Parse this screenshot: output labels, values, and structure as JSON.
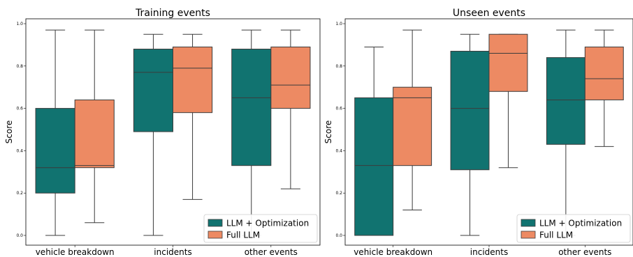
{
  "colors": {
    "opt": "#117370",
    "full": "#ed8a63",
    "line": "#3b3b3b"
  },
  "chart_data": [
    {
      "type": "box",
      "title": "Training events",
      "ylabel": "Score",
      "ylim": [
        0,
        1
      ],
      "yticks": [
        "0.0",
        "0.2",
        "0.4",
        "0.6",
        "0.8",
        "1.0"
      ],
      "categories": [
        "vehicle breakdown",
        "incidents",
        "other events"
      ],
      "legend": {
        "position": "bottom-right",
        "entries": [
          "LLM + Optimization",
          "Full LLM"
        ]
      },
      "series": [
        {
          "name": "LLM + Optimization",
          "boxes": [
            {
              "min": 0.0,
              "q1": 0.2,
              "median": 0.32,
              "q3": 0.6,
              "max": 0.97
            },
            {
              "min": 0.0,
              "q1": 0.49,
              "median": 0.77,
              "q3": 0.88,
              "max": 0.95
            },
            {
              "min": 0.0,
              "q1": 0.33,
              "median": 0.65,
              "q3": 0.88,
              "max": 0.97
            }
          ]
        },
        {
          "name": "Full LLM",
          "boxes": [
            {
              "min": 0.06,
              "q1": 0.32,
              "median": 0.33,
              "q3": 0.64,
              "max": 0.97
            },
            {
              "min": 0.17,
              "q1": 0.58,
              "median": 0.79,
              "q3": 0.89,
              "max": 0.95
            },
            {
              "min": 0.22,
              "q1": 0.6,
              "median": 0.71,
              "q3": 0.89,
              "max": 0.97
            }
          ]
        }
      ]
    },
    {
      "type": "box",
      "title": "Unseen events",
      "ylabel": "Score",
      "ylim": [
        0,
        1
      ],
      "yticks": [
        "0.0",
        "0.2",
        "0.4",
        "0.6",
        "0.8",
        "1.0"
      ],
      "categories": [
        "vehicle breakdown",
        "incidents",
        "other events"
      ],
      "legend": {
        "position": "bottom-right",
        "entries": [
          "LLM + Optimization",
          "Full LLM"
        ]
      },
      "series": [
        {
          "name": "LLM + Optimization",
          "boxes": [
            {
              "min": 0.0,
              "q1": 0.0,
              "median": 0.33,
              "q3": 0.65,
              "max": 0.89
            },
            {
              "min": 0.0,
              "q1": 0.31,
              "median": 0.6,
              "q3": 0.87,
              "max": 0.95
            },
            {
              "min": 0.0,
              "q1": 0.43,
              "median": 0.64,
              "q3": 0.84,
              "max": 0.97
            }
          ]
        },
        {
          "name": "Full LLM",
          "boxes": [
            {
              "min": 0.12,
              "q1": 0.33,
              "median": 0.65,
              "q3": 0.7,
              "max": 0.97
            },
            {
              "min": 0.32,
              "q1": 0.68,
              "median": 0.86,
              "q3": 0.95,
              "max": 0.95
            },
            {
              "min": 0.42,
              "q1": 0.64,
              "median": 0.74,
              "q3": 0.89,
              "max": 0.97
            }
          ]
        }
      ]
    }
  ]
}
